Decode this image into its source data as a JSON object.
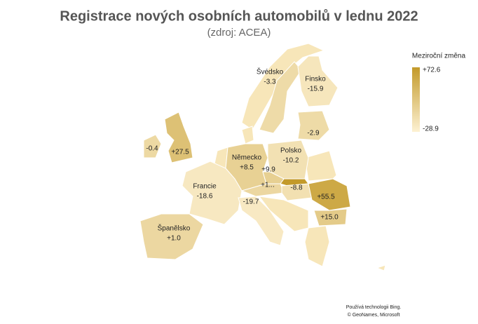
{
  "title": "Registrace nových osobních automobilů v lednu 2022",
  "subtitle": "(zdroj: ACEA)",
  "map": {
    "regions": [
      {
        "name": "Švédsko",
        "value": -3.3,
        "value_label": "-3.3"
      },
      {
        "name": "Finsko",
        "value": -15.9,
        "value_label": "-15.9"
      },
      {
        "value": -2.9,
        "value_label": "-2.9"
      },
      {
        "value": -0.4,
        "value_label": "-0.4"
      },
      {
        "value": 27.5,
        "value_label": "+27.5"
      },
      {
        "name": "Německo",
        "value": 8.5,
        "value_label": "+8.5"
      },
      {
        "name": "Polsko",
        "value": -10.2,
        "value_label": "-10.2"
      },
      {
        "value": 9.9,
        "value_label": "+9.9"
      },
      {
        "value": 1,
        "value_label": "+1..."
      },
      {
        "value": -8.8,
        "value_label": "-8.8"
      },
      {
        "value": 55.5,
        "value_label": "+55.5"
      },
      {
        "value": 15.0,
        "value_label": "+15.0"
      },
      {
        "name": "Francie",
        "value": -18.6,
        "value_label": "-18.6"
      },
      {
        "value": -19.7,
        "value_label": "-19.7"
      },
      {
        "name": "Španělsko",
        "value": 1.0,
        "value_label": "+1.0"
      }
    ],
    "legend": {
      "title": "Meziroční změna",
      "max": 72.6,
      "max_label": "+72.6",
      "min": -28.9,
      "min_label": "-28.9",
      "colors": [
        "#fdf1d2",
        "#c39a2a"
      ]
    }
  },
  "attribution": [
    "Používá technologii Bing.",
    "© GeoNames, Microsoft"
  ]
}
